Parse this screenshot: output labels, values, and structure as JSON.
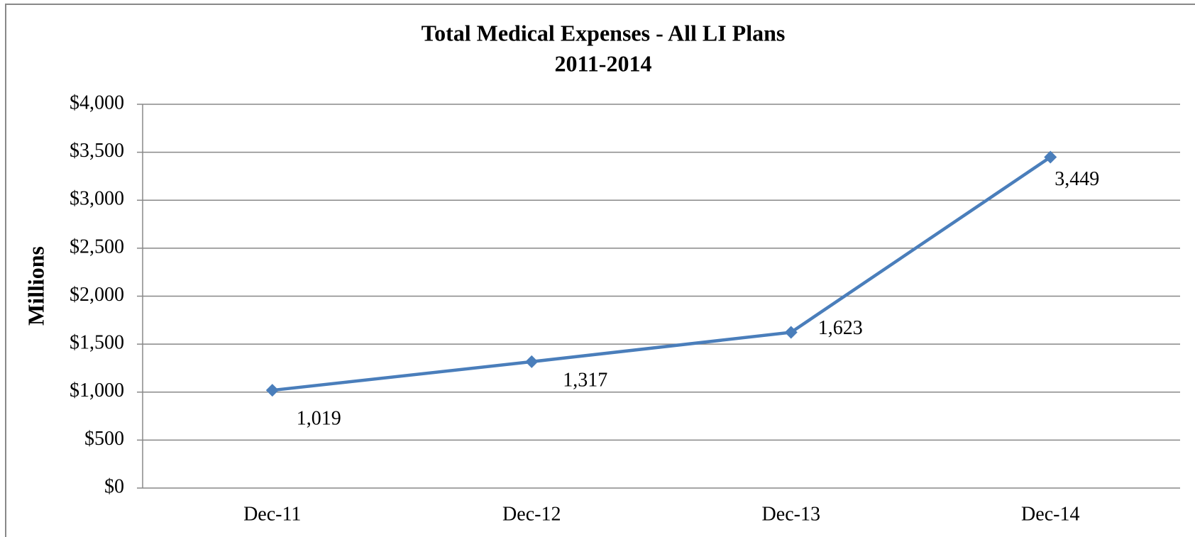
{
  "chart_data": {
    "type": "line",
    "title": "Total Medical Expenses - All LI Plans",
    "subtitle": "2011-2014",
    "ylabel": "Millions",
    "categories": [
      "Dec-11",
      "Dec-12",
      "Dec-13",
      "Dec-14"
    ],
    "series": [
      {
        "name": "Total Medical Expenses",
        "color": "#4a7ebb",
        "values": [
          1019,
          1317,
          1623,
          3449
        ],
        "value_labels": [
          "1,019",
          "1,317",
          "1,623",
          "3,449"
        ]
      }
    ],
    "ylim": [
      0,
      4000
    ],
    "yticks": [
      {
        "value": 0,
        "label": "$0"
      },
      {
        "value": 500,
        "label": "$500"
      },
      {
        "value": 1000,
        "label": "$1,000"
      },
      {
        "value": 1500,
        "label": "$1,500"
      },
      {
        "value": 2000,
        "label": "$2,000"
      },
      {
        "value": 2500,
        "label": "$2,500"
      },
      {
        "value": 3000,
        "label": "$3,000"
      },
      {
        "value": 3500,
        "label": "$3,500"
      },
      {
        "value": 4000,
        "label": "$4,000"
      }
    ],
    "grid": true
  }
}
